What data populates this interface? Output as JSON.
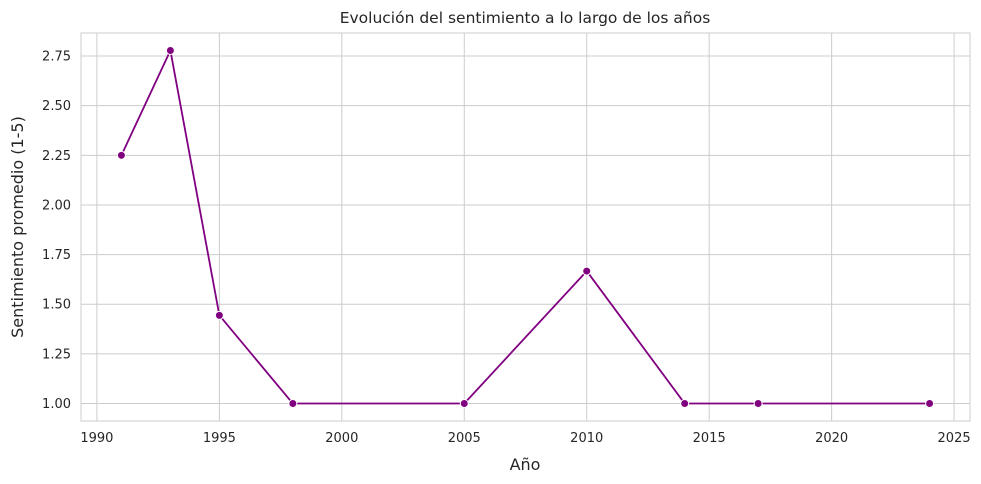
{
  "chart_data": {
    "type": "line",
    "title": "Evolución del sentimiento a lo largo de los años",
    "xlabel": "Año",
    "ylabel": "Sentimiento promedio (1-5)",
    "xlim": [
      1989.35,
      2025.65
    ],
    "ylim": [
      0.912,
      2.866
    ],
    "x_ticks": [
      1990,
      1995,
      2000,
      2005,
      2010,
      2015,
      2020,
      2025
    ],
    "y_ticks": [
      1.0,
      1.25,
      1.5,
      1.75,
      2.0,
      2.25,
      2.5,
      2.75
    ],
    "grid": true,
    "series": [
      {
        "color": "#800080",
        "x": [
          1991,
          1993,
          1995,
          1998,
          2005,
          2010,
          2014,
          2017,
          2024
        ],
        "y": [
          2.25,
          2.778,
          1.444,
          1.0,
          1.0,
          1.667,
          1.0,
          1.0,
          1.0
        ]
      }
    ]
  }
}
